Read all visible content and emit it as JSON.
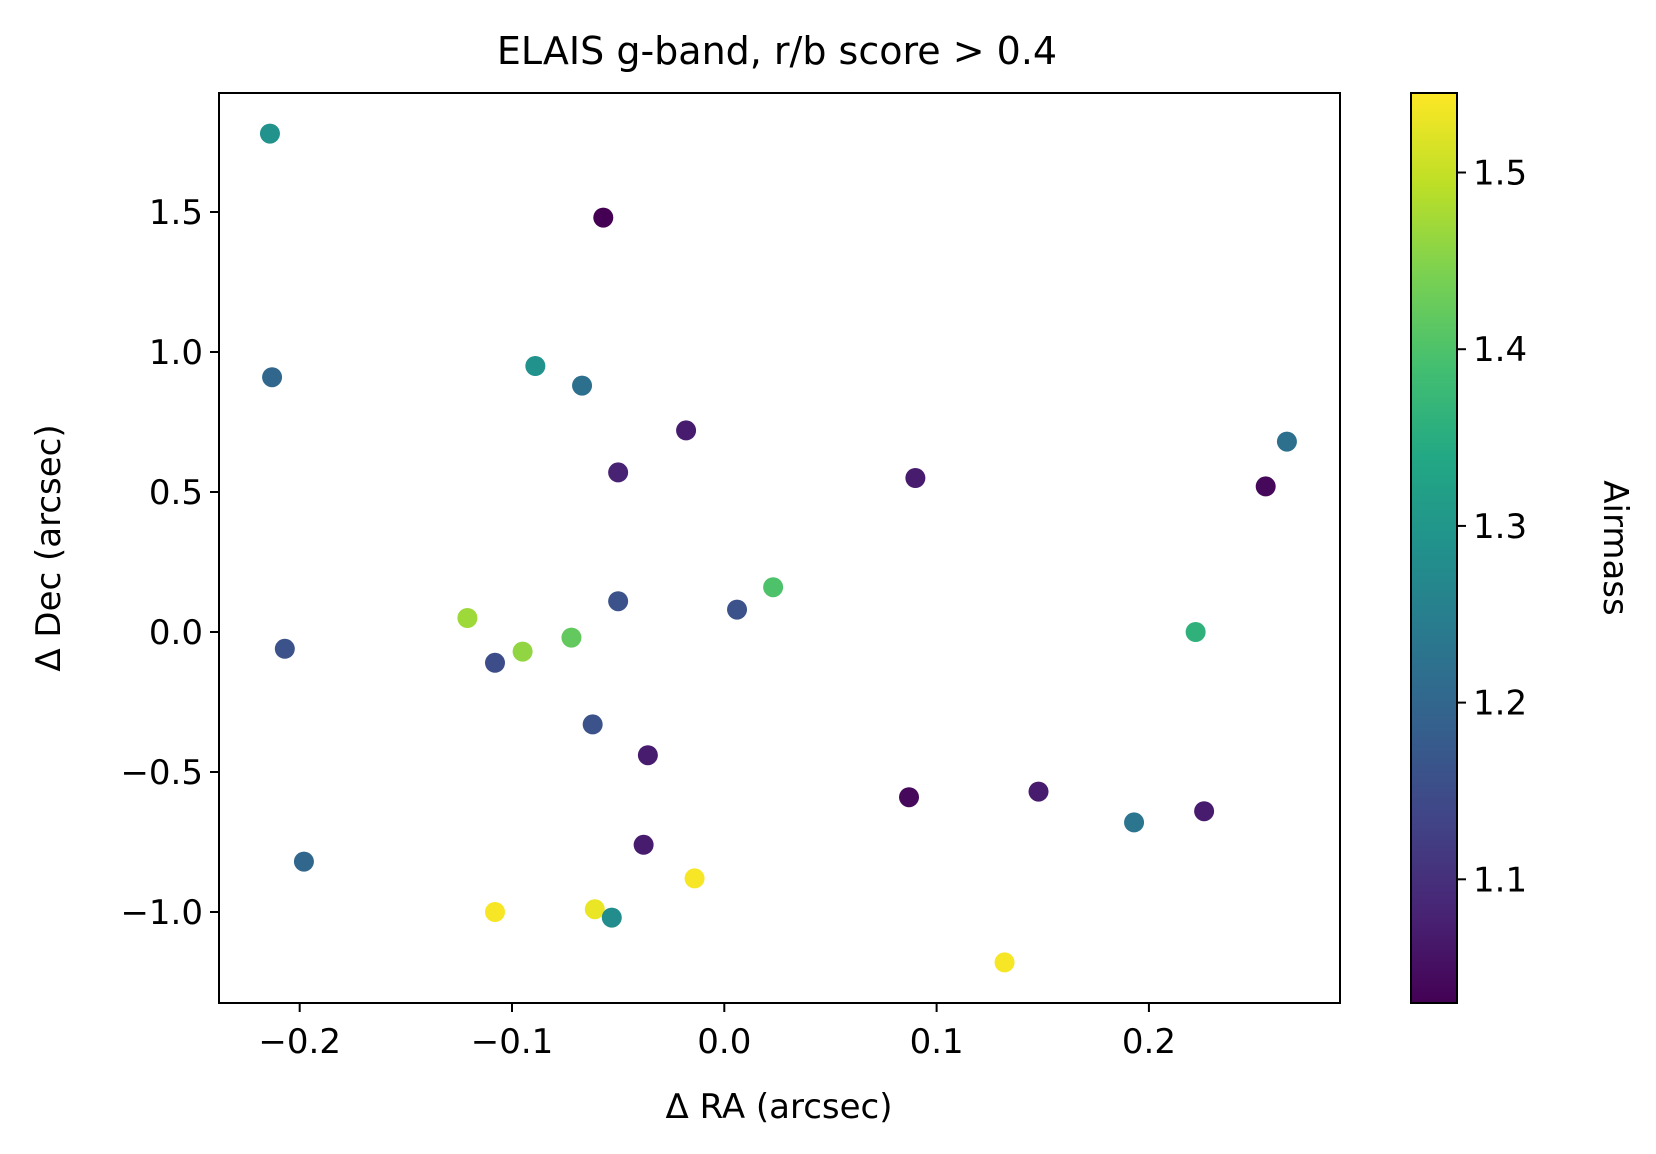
{
  "chart_data": {
    "type": "scatter",
    "title": "ELAIS g-band, r/b score > 0.4",
    "xlabel": "Δ RA (arcsec)",
    "ylabel": "Δ Dec (arcsec)",
    "xlim": [
      -0.238,
      0.29
    ],
    "ylim": [
      -1.325,
      1.925
    ],
    "x_ticks": [
      -0.2,
      -0.1,
      0.0,
      0.1,
      0.2
    ],
    "x_tick_labels": [
      "−0.2",
      "−0.1",
      "0.0",
      "0.1",
      "0.2"
    ],
    "y_ticks": [
      -1.0,
      -0.5,
      0.0,
      0.5,
      1.0,
      1.5
    ],
    "y_tick_labels": [
      "−1.0",
      "−0.5",
      "0.0",
      "0.5",
      "1.0",
      "1.5"
    ],
    "grid": false,
    "colormap": "viridis",
    "colorbar": {
      "label": "Airmass",
      "range": [
        1.03,
        1.545
      ],
      "ticks": [
        1.1,
        1.2,
        1.3,
        1.4,
        1.5
      ],
      "tick_labels": [
        "1.1",
        "1.2",
        "1.3",
        "1.4",
        "1.5"
      ]
    },
    "points": [
      {
        "x": -0.214,
        "y": 1.78,
        "c": 1.29
      },
      {
        "x": -0.057,
        "y": 1.48,
        "c": 1.03
      },
      {
        "x": -0.213,
        "y": 0.91,
        "c": 1.2
      },
      {
        "x": -0.089,
        "y": 0.95,
        "c": 1.29
      },
      {
        "x": -0.067,
        "y": 0.88,
        "c": 1.22
      },
      {
        "x": -0.018,
        "y": 0.72,
        "c": 1.07
      },
      {
        "x": -0.05,
        "y": 0.57,
        "c": 1.08
      },
      {
        "x": 0.09,
        "y": 0.55,
        "c": 1.07
      },
      {
        "x": 0.265,
        "y": 0.68,
        "c": 1.22
      },
      {
        "x": 0.255,
        "y": 0.52,
        "c": 1.04
      },
      {
        "x": 0.023,
        "y": 0.16,
        "c": 1.4
      },
      {
        "x": -0.05,
        "y": 0.11,
        "c": 1.16
      },
      {
        "x": 0.006,
        "y": 0.08,
        "c": 1.16
      },
      {
        "x": -0.121,
        "y": 0.05,
        "c": 1.47
      },
      {
        "x": -0.072,
        "y": -0.02,
        "c": 1.42
      },
      {
        "x": -0.095,
        "y": -0.07,
        "c": 1.46
      },
      {
        "x": -0.108,
        "y": -0.11,
        "c": 1.15
      },
      {
        "x": -0.207,
        "y": -0.06,
        "c": 1.16
      },
      {
        "x": 0.222,
        "y": 0.0,
        "c": 1.36
      },
      {
        "x": -0.062,
        "y": -0.33,
        "c": 1.16
      },
      {
        "x": -0.036,
        "y": -0.44,
        "c": 1.07
      },
      {
        "x": 0.087,
        "y": -0.59,
        "c": 1.04
      },
      {
        "x": 0.148,
        "y": -0.57,
        "c": 1.07
      },
      {
        "x": 0.226,
        "y": -0.64,
        "c": 1.07
      },
      {
        "x": 0.193,
        "y": -0.68,
        "c": 1.23
      },
      {
        "x": -0.038,
        "y": -0.76,
        "c": 1.07
      },
      {
        "x": -0.198,
        "y": -0.82,
        "c": 1.2
      },
      {
        "x": -0.014,
        "y": -0.88,
        "c": 1.54
      },
      {
        "x": -0.108,
        "y": -1.0,
        "c": 1.54
      },
      {
        "x": -0.061,
        "y": -0.99,
        "c": 1.53
      },
      {
        "x": -0.053,
        "y": -1.02,
        "c": 1.28
      },
      {
        "x": 0.132,
        "y": -1.18,
        "c": 1.54
      }
    ]
  }
}
